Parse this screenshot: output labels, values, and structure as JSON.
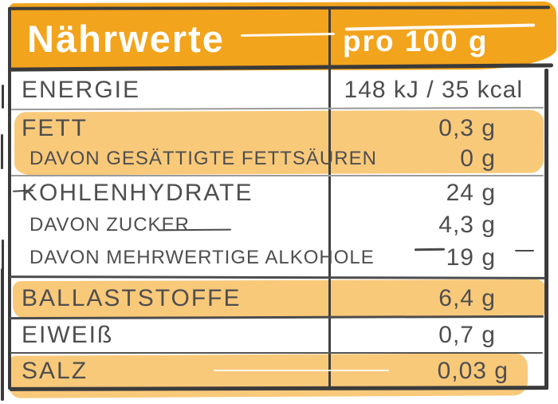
{
  "table": {
    "title": "Nährwerte",
    "column_header": "pro 100 g",
    "rows": [
      {
        "label": "ENERGIE",
        "value": "148 kJ / 35 kcal",
        "highlight": false,
        "sub": false
      },
      {
        "label": "FETT",
        "value": "0,3 g",
        "highlight": true,
        "sub": false
      },
      {
        "label": "DAVON GESÄTTIGTE FETTSÄUREN",
        "value": "0 g",
        "highlight": true,
        "sub": true
      },
      {
        "label": "KOHLENHYDRATE",
        "value": "24 g",
        "highlight": false,
        "sub": false
      },
      {
        "label": "DAVON ZUCKER",
        "value": "4,3 g",
        "highlight": false,
        "sub": true
      },
      {
        "label": "DAVON MEHRWERTIGE ALKOHOLE",
        "value": "19 g",
        "highlight": false,
        "sub": true
      },
      {
        "label": "BALLASTSTOFFE",
        "value": "6,4 g",
        "highlight": true,
        "sub": false
      },
      {
        "label": "EIWEIß",
        "value": "0,7 g",
        "highlight": false,
        "sub": false
      },
      {
        "label": "SALZ",
        "value": "0,03 g",
        "highlight": true,
        "sub": false
      }
    ],
    "colors": {
      "header_orange": "#F2A41D",
      "highlight_orange": "#F9C97A",
      "text_gray": "#4E4E4E",
      "border_dark": "#3B3B3B",
      "header_text": "#FFFFFF"
    }
  }
}
